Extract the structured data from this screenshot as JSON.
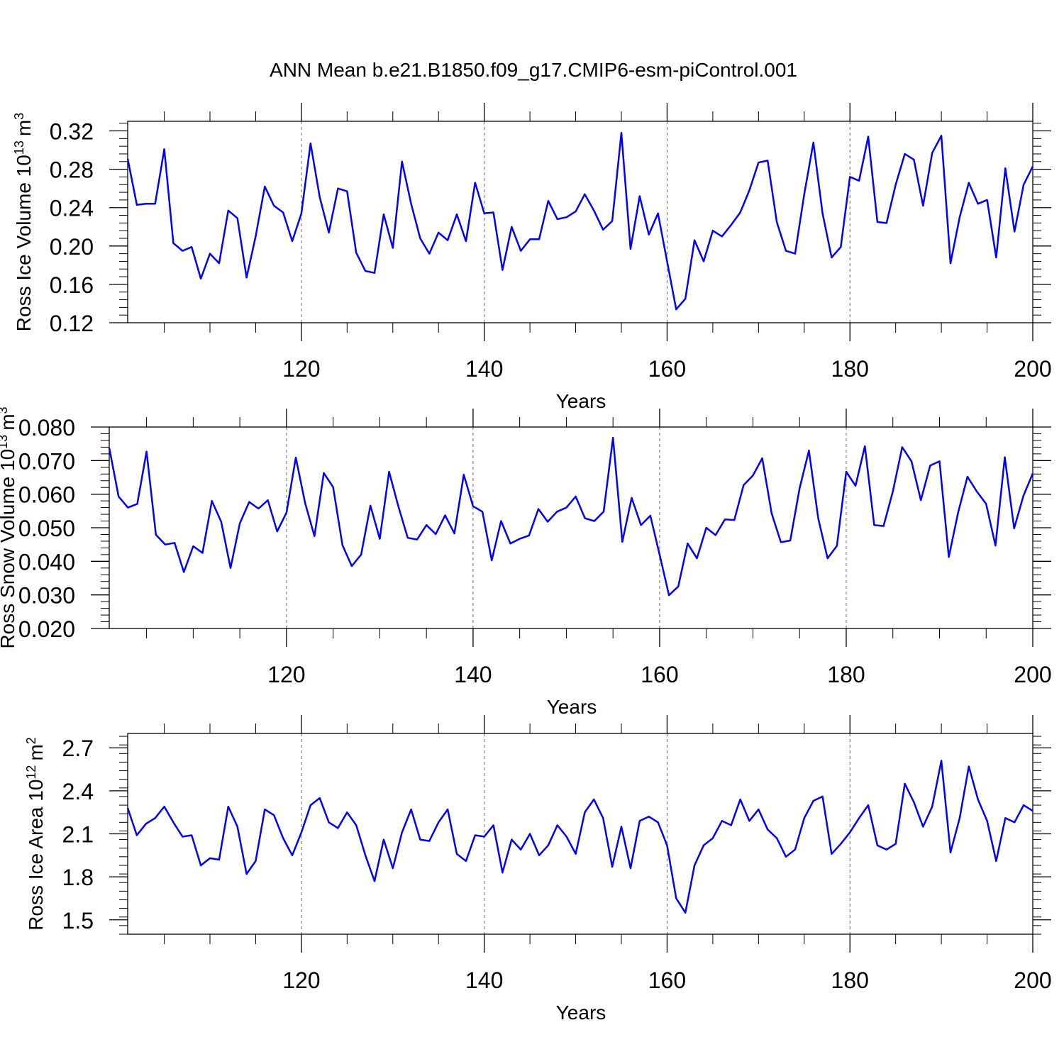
{
  "figure_title": "ANN Mean b.e21.B1850.f09_g17.CMIP6-esm-piControl.001",
  "line_color": "#0000ff",
  "chart_data": [
    {
      "type": "line",
      "title": "",
      "ylabel_main": "Ross Ice Volume 10",
      "ylabel_exp": "13",
      "ylabel_unit": "m",
      "ylabel_unit_exp": "3",
      "xlabel": "Years",
      "xlim": [
        101,
        200
      ],
      "ylim": [
        0.12,
        0.33
      ],
      "ytick_values": [
        0.12,
        0.16,
        0.2,
        0.24,
        0.28,
        0.32
      ],
      "ytick_labels": [
        "0.12",
        "0.16",
        "0.20",
        "0.24",
        "0.28",
        "0.32"
      ],
      "ytick_minor_step": 0.008,
      "xtick_values": [
        120,
        140,
        160,
        180,
        200
      ],
      "xtick_labels": [
        "120",
        "140",
        "160",
        "180",
        "200"
      ],
      "grid": "x-dashed",
      "series": [
        {
          "name": "Ross Ice Volume",
          "x_start": 101,
          "values": [
            0.291,
            0.243,
            0.244,
            0.244,
            0.301,
            0.203,
            0.195,
            0.199,
            0.166,
            0.192,
            0.182,
            0.237,
            0.229,
            0.167,
            0.21,
            0.262,
            0.242,
            0.235,
            0.205,
            0.234,
            0.307,
            0.251,
            0.214,
            0.26,
            0.257,
            0.193,
            0.174,
            0.172,
            0.233,
            0.198,
            0.288,
            0.244,
            0.208,
            0.192,
            0.214,
            0.206,
            0.233,
            0.205,
            0.266,
            0.234,
            0.235,
            0.175,
            0.22,
            0.195,
            0.207,
            0.207,
            0.247,
            0.228,
            0.23,
            0.236,
            0.254,
            0.237,
            0.217,
            0.226,
            0.318,
            0.197,
            0.252,
            0.212,
            0.234,
            0.184,
            0.134,
            0.145,
            0.206,
            0.184,
            0.216,
            0.21,
            0.222,
            0.235,
            0.258,
            0.287,
            0.289,
            0.225,
            0.195,
            0.192,
            0.254,
            0.308,
            0.234,
            0.188,
            0.199,
            0.272,
            0.268,
            0.314,
            0.225,
            0.224,
            0.264,
            0.296,
            0.29,
            0.242,
            0.297,
            0.315,
            0.182,
            0.23,
            0.266,
            0.244,
            0.248,
            0.188,
            0.281,
            0.215,
            0.264,
            0.283
          ]
        }
      ]
    },
    {
      "type": "line",
      "title": "",
      "ylabel_main": "Ross Snow Volume 10",
      "ylabel_exp": "13",
      "ylabel_unit": "m",
      "ylabel_unit_exp": "3",
      "xlabel": "Years",
      "xlim": [
        101,
        200
      ],
      "ylim": [
        0.02,
        0.08
      ],
      "ytick_values": [
        0.02,
        0.03,
        0.04,
        0.05,
        0.06,
        0.07,
        0.08
      ],
      "ytick_labels": [
        "0.020",
        "0.030",
        "0.040",
        "0.050",
        "0.060",
        "0.070",
        "0.080"
      ],
      "ytick_minor_step": 0.002,
      "xtick_values": [
        120,
        140,
        160,
        180,
        200
      ],
      "xtick_labels": [
        "120",
        "140",
        "160",
        "180",
        "200"
      ],
      "grid": "x-dashed",
      "series": [
        {
          "name": "Ross Snow Volume",
          "x_start": 101,
          "values": [
            0.0738,
            0.0593,
            0.056,
            0.0571,
            0.0727,
            0.0479,
            0.045,
            0.0455,
            0.0368,
            0.0445,
            0.0425,
            0.058,
            0.0518,
            0.038,
            0.0513,
            0.0577,
            0.0557,
            0.0582,
            0.0489,
            0.0545,
            0.0709,
            0.0573,
            0.0475,
            0.0663,
            0.0621,
            0.0448,
            0.0386,
            0.042,
            0.0566,
            0.0467,
            0.0667,
            0.0563,
            0.047,
            0.0465,
            0.0508,
            0.0481,
            0.0537,
            0.0483,
            0.0658,
            0.0564,
            0.0548,
            0.0403,
            0.052,
            0.0453,
            0.0467,
            0.0477,
            0.0556,
            0.0518,
            0.0548,
            0.056,
            0.0593,
            0.0528,
            0.052,
            0.0548,
            0.0768,
            0.0458,
            0.0589,
            0.0508,
            0.0536,
            0.042,
            0.0299,
            0.0325,
            0.0453,
            0.0409,
            0.05,
            0.0478,
            0.0525,
            0.0523,
            0.0627,
            0.0656,
            0.0707,
            0.0543,
            0.0457,
            0.0462,
            0.0617,
            0.073,
            0.0528,
            0.0409,
            0.0446,
            0.0667,
            0.0625,
            0.0743,
            0.0508,
            0.0505,
            0.0608,
            0.074,
            0.0698,
            0.0582,
            0.0685,
            0.0698,
            0.0413,
            0.0546,
            0.0652,
            0.0608,
            0.0571,
            0.0447,
            0.071,
            0.0498,
            0.0595,
            0.0662
          ]
        }
      ]
    },
    {
      "type": "line",
      "title": "",
      "ylabel_main": "Ross Ice Area 10",
      "ylabel_exp": "12",
      "ylabel_unit": "m",
      "ylabel_unit_exp": "2",
      "xlabel": "Years",
      "xlim": [
        101,
        200
      ],
      "ylim": [
        1.4,
        2.8
      ],
      "ytick_values": [
        1.5,
        1.8,
        2.1,
        2.4,
        2.7
      ],
      "ytick_labels": [
        "1.5",
        "1.8",
        "2.1",
        "2.4",
        "2.7"
      ],
      "ytick_minor_step": 0.06,
      "xtick_values": [
        120,
        140,
        160,
        180,
        200
      ],
      "xtick_labels": [
        "120",
        "140",
        "160",
        "180",
        "200"
      ],
      "grid": "x-dashed",
      "series": [
        {
          "name": "Ross Ice Area",
          "x_start": 101,
          "values": [
            2.28,
            2.09,
            2.17,
            2.21,
            2.29,
            2.18,
            2.08,
            2.09,
            1.88,
            1.93,
            1.92,
            2.29,
            2.15,
            1.82,
            1.91,
            2.27,
            2.23,
            2.07,
            1.95,
            2.11,
            2.3,
            2.35,
            2.18,
            2.14,
            2.25,
            2.16,
            1.95,
            1.77,
            2.06,
            1.86,
            2.11,
            2.27,
            2.06,
            2.05,
            2.18,
            2.27,
            1.96,
            1.91,
            2.09,
            2.08,
            2.16,
            1.83,
            2.06,
            1.99,
            2.1,
            1.95,
            2.02,
            2.16,
            2.08,
            1.96,
            2.25,
            2.34,
            2.21,
            1.87,
            2.15,
            1.86,
            2.19,
            2.22,
            2.18,
            2.02,
            1.65,
            1.55,
            1.88,
            2.02,
            2.07,
            2.19,
            2.16,
            2.34,
            2.19,
            2.27,
            2.13,
            2.07,
            1.94,
            1.99,
            2.21,
            2.33,
            2.36,
            1.96,
            2.03,
            2.11,
            2.21,
            2.3,
            2.02,
            1.99,
            2.03,
            2.45,
            2.32,
            2.15,
            2.29,
            2.61,
            1.97,
            2.21,
            2.57,
            2.34,
            2.19,
            1.91,
            2.21,
            2.18,
            2.3,
            2.26
          ]
        }
      ]
    }
  ]
}
